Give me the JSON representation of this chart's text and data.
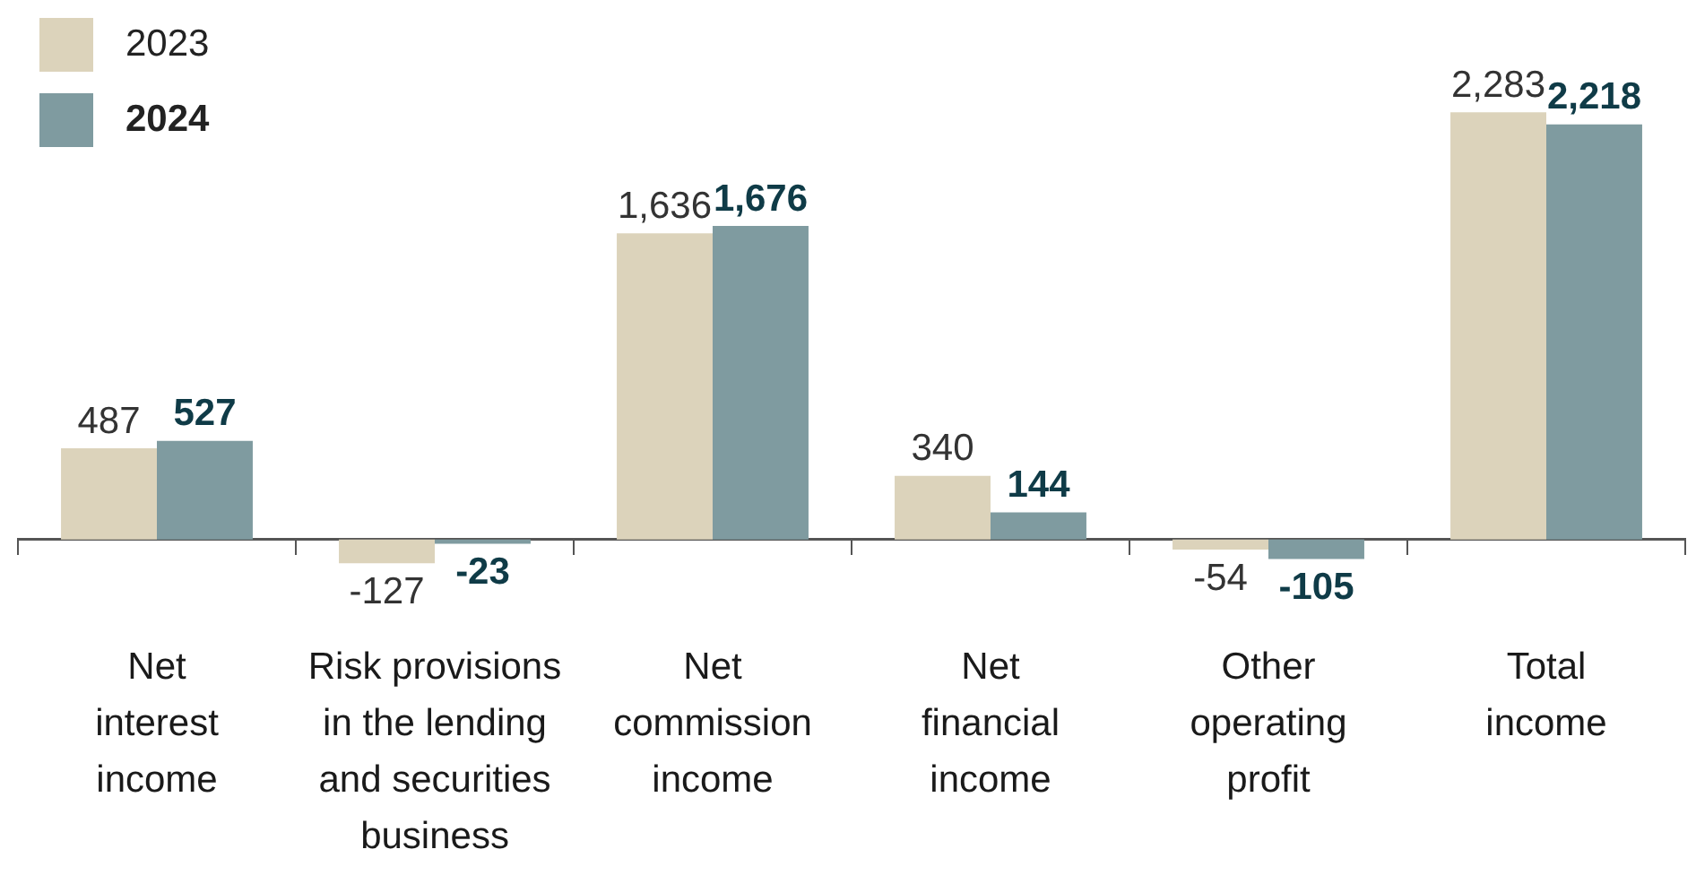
{
  "chart_data": {
    "type": "bar",
    "categories": [
      "Net interest income",
      "Risk provisions in the lending and securities business",
      "Net commission income",
      "Net financial income",
      "Other operating profit",
      "Total income"
    ],
    "series": [
      {
        "name": "2023",
        "color": "#dcd3bb",
        "values": [
          487,
          -127,
          1636,
          340,
          -54,
          2283
        ],
        "value_labels": [
          "487",
          "-127",
          "1,636",
          "340",
          "-54",
          "2,283"
        ]
      },
      {
        "name": "2024",
        "color": "#7f9ba0",
        "values": [
          527,
          -23,
          1676,
          144,
          -105,
          2218
        ],
        "value_labels": [
          "527",
          "-23",
          "1,676",
          "144",
          "-105",
          "2,218"
        ]
      }
    ],
    "legend": "top left"
  }
}
